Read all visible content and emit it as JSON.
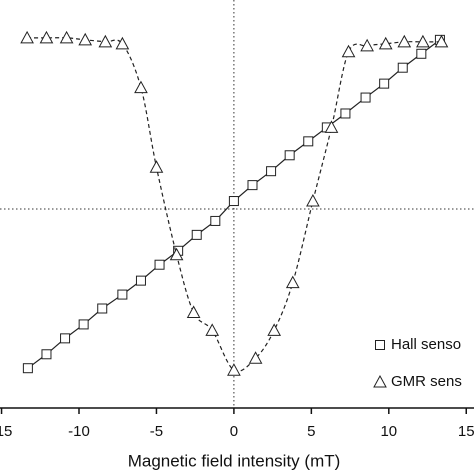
{
  "chart_data": {
    "type": "scatter",
    "xlabel": "Magnetic field intensity (mT)",
    "xlim": [
      -15.1,
      15.5
    ],
    "ylim": [
      -1.0,
      1.0
    ],
    "xticks": [
      -15,
      -10,
      -5,
      0,
      5,
      10,
      15
    ],
    "zero_lines": true,
    "legend": "lower right",
    "series": [
      {
        "name": "Hall senso",
        "marker": "square",
        "line": "solid",
        "color": "#222222",
        "x": [
          -13.3,
          -12.1,
          -10.9,
          -9.7,
          -8.5,
          -7.2,
          -6.0,
          -4.8,
          -3.6,
          -2.4,
          -1.2,
          0.0,
          1.2,
          2.4,
          3.6,
          4.8,
          6.0,
          7.2,
          8.5,
          9.7,
          10.9,
          12.1,
          13.3
        ],
        "values": [
          -0.8,
          -0.73,
          -0.65,
          -0.58,
          -0.5,
          -0.43,
          -0.36,
          -0.28,
          -0.21,
          -0.13,
          -0.06,
          0.04,
          0.12,
          0.19,
          0.27,
          0.34,
          0.41,
          0.48,
          0.56,
          0.63,
          0.71,
          0.78,
          0.85
        ]
      },
      {
        "name": "GMR sens",
        "marker": "triangle",
        "line": "dashed",
        "color": "#222222",
        "x": [
          -13.35,
          -12.1,
          -10.8,
          -9.6,
          -8.3,
          -7.2,
          -6.0,
          -5.0,
          -3.7,
          -2.6,
          -1.4,
          0.0,
          1.4,
          2.6,
          3.8,
          5.1,
          6.3,
          7.4,
          8.6,
          9.8,
          11.0,
          12.2,
          13.4
        ],
        "values": [
          0.86,
          0.86,
          0.86,
          0.85,
          0.84,
          0.83,
          0.61,
          0.21,
          -0.23,
          -0.52,
          -0.61,
          -0.81,
          -0.75,
          -0.61,
          -0.37,
          0.04,
          0.41,
          0.79,
          0.82,
          0.83,
          0.84,
          0.84,
          0.84
        ]
      }
    ]
  }
}
